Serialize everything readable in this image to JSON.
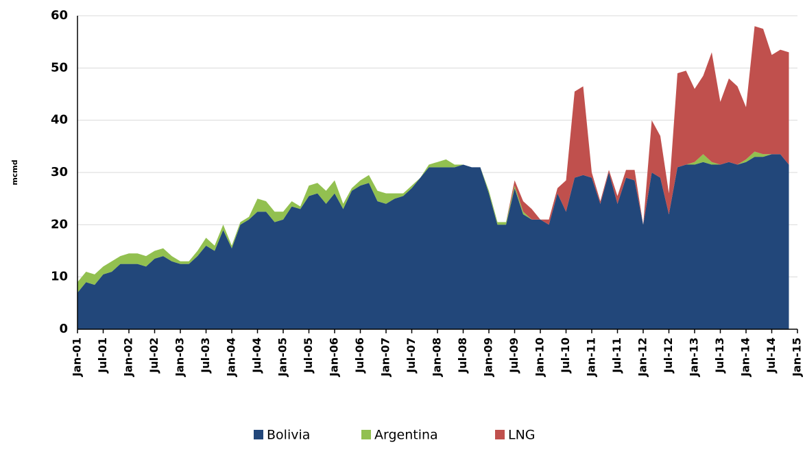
{
  "chart_data": {
    "type": "stacked-area",
    "y_label": "mcmd",
    "categories": [
      "Jan-01",
      null,
      null,
      "Jul-01",
      null,
      null,
      "Jan-02",
      null,
      null,
      "Jul-02",
      null,
      null,
      "Jan-03",
      null,
      null,
      "Jul-03",
      null,
      null,
      "Jan-04",
      null,
      null,
      "Jul-04",
      null,
      null,
      "Jan-05",
      null,
      null,
      "Jul-05",
      null,
      null,
      "Jan-06",
      null,
      null,
      "Jul-06",
      null,
      null,
      "Jan-07",
      null,
      null,
      "Jul-07",
      null,
      null,
      "Jan-08",
      null,
      null,
      "Jul-08",
      null,
      null,
      "Jan-09",
      null,
      null,
      "Jul-09",
      null,
      null,
      "Jan-10",
      null,
      null,
      "Jul-10",
      null,
      null,
      "Jan-11",
      null,
      null,
      "Jul-11",
      null,
      null,
      "Jan-12",
      null,
      null,
      "Jul-12",
      null,
      null,
      "Jan-13",
      null,
      null,
      "Jul-13",
      null,
      null,
      "Jan-14",
      null,
      null,
      "Jul-14",
      null,
      null,
      "Jan-15"
    ],
    "series": [
      {
        "name": "Bolivia",
        "color": "#22477a",
        "values": [
          7,
          9,
          8.5,
          10.5,
          11,
          12.5,
          12.5,
          12.5,
          12,
          13.5,
          14,
          13,
          12.5,
          12.5,
          14,
          16,
          15,
          19,
          15.5,
          20,
          21,
          22.5,
          22.5,
          20.5,
          21,
          23.5,
          23,
          25.5,
          26,
          24,
          26,
          23,
          26.5,
          27.5,
          28,
          24.5,
          24,
          25,
          25.5,
          27,
          29,
          31,
          31,
          31,
          31,
          31.5,
          31,
          31,
          26,
          20,
          20,
          27,
          22,
          21,
          21,
          20,
          26,
          22.5,
          29,
          29.5,
          29,
          24,
          30,
          24,
          29,
          28.5,
          20,
          30,
          29,
          22,
          31,
          31.5,
          31.5,
          32,
          31.5,
          31.5,
          32,
          31.5,
          32,
          33,
          33,
          33.5,
          33.5,
          31.5,
          null
        ]
      },
      {
        "name": "Argentina",
        "color": "#92c050",
        "values": [
          2,
          2,
          2,
          1.5,
          2,
          1.5,
          2,
          2,
          2,
          1.5,
          1.5,
          1,
          0.5,
          0.5,
          1,
          1.5,
          1,
          1,
          0.5,
          0.5,
          0.5,
          2.5,
          2,
          2,
          1.5,
          1,
          0.5,
          2,
          2,
          2.5,
          2.5,
          1,
          0.5,
          1,
          1.5,
          2,
          2,
          1,
          0.5,
          0.5,
          0,
          0.5,
          1,
          1.5,
          0.5,
          0,
          0,
          0,
          0.5,
          0.5,
          0.5,
          0.5,
          0.5,
          0,
          0,
          0,
          0,
          0,
          0,
          0,
          0,
          0,
          0,
          0,
          0,
          0,
          0,
          0,
          0,
          0,
          0,
          0,
          0.5,
          1.5,
          0.5,
          0,
          0,
          0,
          0.5,
          1,
          0.5,
          0,
          0,
          0,
          null
        ]
      },
      {
        "name": "LNG",
        "color": "#c0504d",
        "values": [
          0,
          0,
          0,
          0,
          0,
          0,
          0,
          0,
          0,
          0,
          0,
          0,
          0,
          0,
          0,
          0,
          0,
          0,
          0,
          0,
          0,
          0,
          0,
          0,
          0,
          0,
          0,
          0,
          0,
          0,
          0,
          0,
          0,
          0,
          0,
          0,
          0,
          0,
          0,
          0,
          0,
          0,
          0,
          0,
          0,
          0,
          0,
          0,
          0,
          0,
          0,
          1,
          2,
          2,
          0,
          1,
          1,
          6,
          16.5,
          17,
          1,
          0.5,
          0.5,
          1.5,
          1.5,
          2,
          0,
          10,
          8,
          4,
          18,
          18,
          14,
          15,
          21,
          12,
          16,
          15,
          10,
          24,
          24,
          19,
          20,
          21.5,
          null
        ]
      }
    ],
    "ylim": [
      0,
      60
    ],
    "yticks": [
      0,
      10,
      20,
      30,
      40,
      50,
      60
    ],
    "grid": true,
    "legend": "bottom"
  }
}
